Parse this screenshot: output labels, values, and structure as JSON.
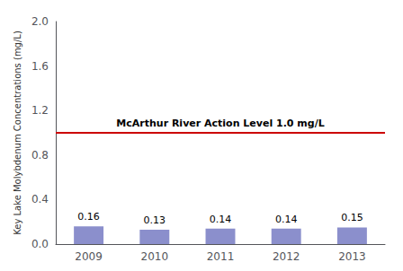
{
  "chart_data": {
    "type": "bar",
    "categories": [
      "2009",
      "2010",
      "2011",
      "2012",
      "2013"
    ],
    "values": [
      0.16,
      0.13,
      0.14,
      0.14,
      0.15
    ],
    "color": "#8B8FCC",
    "ylabel": "Key Lake Molybdenum Concentrations (mg/L)",
    "ylim": [
      0,
      2.0
    ],
    "yticks": [
      {
        "value": 0.0,
        "label": "0.0"
      },
      0.4,
      0.8,
      1.2,
      1.6,
      {
        "value": 2.0,
        "label": "2.0"
      }
    ],
    "grid": false,
    "data_labels": true,
    "hlines": [
      {
        "value": 1.0,
        "label": "McArthur River Action Level 1.0 mg/L",
        "color": "#CC0000"
      }
    ]
  }
}
